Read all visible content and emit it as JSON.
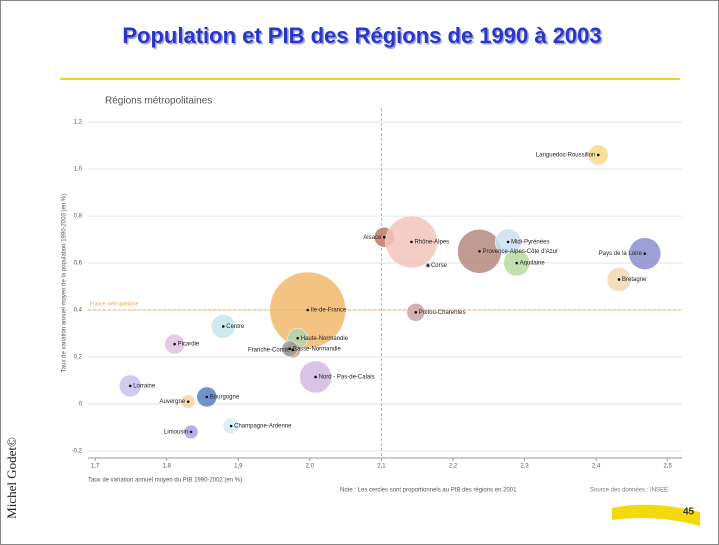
{
  "chart_data": {
    "type": "bubble",
    "title": "Population et PIB des Régions de 1990 à 2003",
    "subtitle": "Régions métropolitaines",
    "x_label": "Taux de variation annuel moyen du PIB 1990-2002 (en %)",
    "y_label": "Taux de variation annuel moyen de la population 1990-2003 (en %)",
    "note": "Note : Les cercles sont proportionnels au PIB des régions en 2001",
    "source": "Source des données : INSEE",
    "reference": {
      "x": 2.1,
      "y": 0.4,
      "label": "France métropolitaine"
    },
    "xlim": [
      1.69,
      2.52
    ],
    "xticks": [
      {
        "value": 1.7,
        "label": "1,7"
      },
      {
        "value": 1.8,
        "label": "1,8"
      },
      {
        "value": 1.9,
        "label": "1,9"
      },
      {
        "value": 2.0,
        "label": "2,0"
      },
      {
        "value": 2.1,
        "label": "2,1"
      },
      {
        "value": 2.2,
        "label": "2,2"
      },
      {
        "value": 2.3,
        "label": "2,3"
      },
      {
        "value": 2.4,
        "label": "2,4"
      },
      {
        "value": 2.5,
        "label": "2,5"
      }
    ],
    "ylim": [
      -0.23,
      1.26
    ],
    "yticks": [
      {
        "value": -0.2,
        "label": "-0,2"
      },
      0,
      {
        "value": 0.2,
        "label": "0,2"
      },
      {
        "value": 0.4,
        "label": "0,4"
      },
      {
        "value": 0.6,
        "label": "0,6"
      },
      {
        "value": 0.8,
        "label": "0,8"
      },
      {
        "value": 1.0,
        "label": "1,0"
      },
      {
        "value": 1.2,
        "label": "1,2"
      }
    ],
    "grid": true,
    "labels": [
      "Languedoc-Roussillon",
      "Provence-Alpes-Côte d'Azur",
      "Alsace",
      "Rhône-Alpes",
      "Corse",
      "Midi-Pyrénées",
      "Aquitaine",
      "Pays de la Loire",
      "Bretagne",
      "Ile-de-France",
      "Poitou-Charentes",
      "Centre",
      "Haute-Normandie",
      "Franche-Comté",
      "Basse-Normandie",
      "Picardie",
      "Nord - Pas-de-Calais",
      "Lorraine",
      "Bourgogne",
      "Auvergne",
      "Champagne-Ardenne",
      "Limousin"
    ],
    "x": [
      2.403,
      2.237,
      2.104,
      2.142,
      2.165,
      2.277,
      2.289,
      2.468,
      2.432,
      1.997,
      2.148,
      1.879,
      1.983,
      1.976,
      1.972,
      1.811,
      2.008,
      1.749,
      1.856,
      1.83,
      1.89,
      1.834
    ],
    "values": [
      1.06,
      0.65,
      0.71,
      0.69,
      0.59,
      0.69,
      0.6,
      0.64,
      0.53,
      0.4,
      0.39,
      0.33,
      0.28,
      0.23,
      0.235,
      0.255,
      0.115,
      0.077,
      0.03,
      0.01,
      -0.094,
      -0.119
    ],
    "sizes": [
      10,
      22,
      10,
      26,
      3,
      13,
      13,
      16,
      12,
      38,
      9,
      12,
      10,
      8,
      8,
      10,
      16,
      11,
      10,
      7,
      8,
      7
    ],
    "colors": [
      "#f7d98a",
      "#b58a7e",
      "#c0796a",
      "#f2c4bc",
      "#bbbbbb",
      "#c9e2f0",
      "#b9dba1",
      "#8c8fcf",
      "#f2d9b0",
      "#f0b96b",
      "#c9a3a3",
      "#c6e6ef",
      "#b3d6b0",
      "#c9a07a",
      "#9c9c9c",
      "#e4c1e4",
      "#d4b9e2",
      "#c9c3ec",
      "#5b7fc4",
      "#f3d7a0",
      "#d7ecf5",
      "#a6a8d9"
    ]
  }
}
